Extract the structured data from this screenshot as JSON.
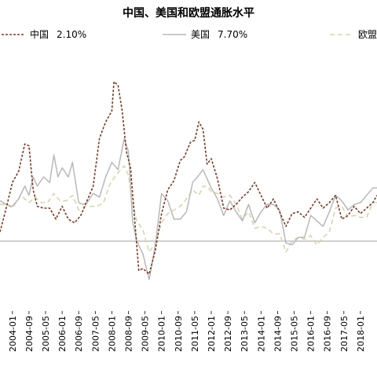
{
  "chart_data": {
    "type": "line",
    "title": "中国、美国和欧盟通胀水平",
    "xlabel": "",
    "ylabel": "",
    "x_tick_labels": [
      "2004-01",
      "2004-09",
      "2005-05",
      "2006-01",
      "2006-09",
      "2007-05",
      "2008-01",
      "2008-09",
      "2009-05",
      "2010-01",
      "2010-09",
      "2011-05",
      "2012-01",
      "2012-09",
      "2013-05",
      "2014-01",
      "2014-09",
      "2015-05",
      "2016-01",
      "2016-09",
      "2017-05",
      "2018-01"
    ],
    "x_tick_dates": [
      "2004-01",
      "2004-09",
      "2005-05",
      "2006-01",
      "2006-09",
      "2007-05",
      "2008-01",
      "2008-09",
      "2009-05",
      "2010-01",
      "2010-09",
      "2011-05",
      "2012-01",
      "2012-09",
      "2013-05",
      "2014-01",
      "2014-09",
      "2015-05",
      "2016-01",
      "2016-09",
      "2017-05",
      "2018-01"
    ],
    "x_range": [
      "2003-07",
      "2018-09"
    ],
    "ylim": [
      -3,
      9
    ],
    "zero_line": true,
    "grid": false,
    "legend_position": "top",
    "series": [
      {
        "name": "中国 2.10%",
        "legend_label": "中国",
        "legend_value": "2.10%",
        "color": "#7b3a26",
        "style": "dashed",
        "points": [
          [
            "2003-07",
            0.5
          ],
          [
            "2003-10",
            1.8
          ],
          [
            "2004-01",
            3.2
          ],
          [
            "2004-04",
            3.8
          ],
          [
            "2004-07",
            5.3
          ],
          [
            "2004-09",
            5.2
          ],
          [
            "2004-11",
            2.8
          ],
          [
            "2005-01",
            1.9
          ],
          [
            "2005-04",
            1.8
          ],
          [
            "2005-07",
            1.8
          ],
          [
            "2005-10",
            1.2
          ],
          [
            "2006-01",
            1.9
          ],
          [
            "2006-04",
            1.2
          ],
          [
            "2006-07",
            1.0
          ],
          [
            "2006-10",
            1.4
          ],
          [
            "2007-01",
            2.2
          ],
          [
            "2007-04",
            3.0
          ],
          [
            "2007-07",
            5.6
          ],
          [
            "2007-10",
            6.5
          ],
          [
            "2008-01",
            7.1
          ],
          [
            "2008-02",
            8.7
          ],
          [
            "2008-04",
            8.5
          ],
          [
            "2008-06",
            7.1
          ],
          [
            "2008-08",
            4.9
          ],
          [
            "2008-10",
            4.0
          ],
          [
            "2008-12",
            1.2
          ],
          [
            "2009-02",
            -1.6
          ],
          [
            "2009-04",
            -1.5
          ],
          [
            "2009-07",
            -1.8
          ],
          [
            "2009-10",
            -0.5
          ],
          [
            "2010-01",
            1.5
          ],
          [
            "2010-04",
            2.8
          ],
          [
            "2010-07",
            3.3
          ],
          [
            "2010-10",
            4.4
          ],
          [
            "2010-12",
            4.6
          ],
          [
            "2011-03",
            5.4
          ],
          [
            "2011-05",
            5.5
          ],
          [
            "2011-07",
            6.5
          ],
          [
            "2011-09",
            6.1
          ],
          [
            "2011-11",
            4.2
          ],
          [
            "2012-01",
            4.5
          ],
          [
            "2012-04",
            3.4
          ],
          [
            "2012-07",
            1.8
          ],
          [
            "2012-10",
            1.7
          ],
          [
            "2013-01",
            2.0
          ],
          [
            "2013-04",
            2.4
          ],
          [
            "2013-07",
            2.7
          ],
          [
            "2013-10",
            3.2
          ],
          [
            "2014-01",
            2.5
          ],
          [
            "2014-04",
            1.8
          ],
          [
            "2014-07",
            2.3
          ],
          [
            "2014-10",
            1.6
          ],
          [
            "2015-01",
            0.8
          ],
          [
            "2015-04",
            1.5
          ],
          [
            "2015-07",
            1.6
          ],
          [
            "2015-10",
            1.3
          ],
          [
            "2016-01",
            1.8
          ],
          [
            "2016-04",
            2.3
          ],
          [
            "2016-07",
            1.8
          ],
          [
            "2016-10",
            2.1
          ],
          [
            "2017-01",
            2.5
          ],
          [
            "2017-04",
            1.2
          ],
          [
            "2017-07",
            1.4
          ],
          [
            "2017-10",
            1.9
          ],
          [
            "2018-01",
            1.5
          ],
          [
            "2018-04",
            1.8
          ],
          [
            "2018-07",
            2.1
          ],
          [
            "2018-09",
            2.5
          ]
        ]
      },
      {
        "name": "美国 7.70%",
        "legend_label": "美国",
        "legend_value": "7.70%",
        "color": "#b8b8b8",
        "style": "solid",
        "points": [
          [
            "2003-07",
            2.2
          ],
          [
            "2003-10",
            2.0
          ],
          [
            "2004-01",
            1.9
          ],
          [
            "2004-04",
            2.3
          ],
          [
            "2004-07",
            3.0
          ],
          [
            "2004-09",
            2.5
          ],
          [
            "2004-11",
            3.5
          ],
          [
            "2005-01",
            3.0
          ],
          [
            "2005-04",
            3.5
          ],
          [
            "2005-07",
            3.2
          ],
          [
            "2005-09",
            4.7
          ],
          [
            "2005-11",
            3.5
          ],
          [
            "2006-01",
            4.0
          ],
          [
            "2006-04",
            3.5
          ],
          [
            "2006-06",
            4.3
          ],
          [
            "2006-09",
            2.1
          ],
          [
            "2006-11",
            2.0
          ],
          [
            "2007-01",
            2.1
          ],
          [
            "2007-04",
            2.6
          ],
          [
            "2007-07",
            2.4
          ],
          [
            "2007-10",
            3.5
          ],
          [
            "2008-01",
            4.3
          ],
          [
            "2008-04",
            3.9
          ],
          [
            "2008-07",
            5.6
          ],
          [
            "2008-09",
            4.9
          ],
          [
            "2008-11",
            1.1
          ],
          [
            "2009-01",
            0.0
          ],
          [
            "2009-04",
            -0.7
          ],
          [
            "2009-07",
            -2.1
          ],
          [
            "2009-10",
            -0.2
          ],
          [
            "2010-01",
            2.6
          ],
          [
            "2010-04",
            2.2
          ],
          [
            "2010-07",
            1.2
          ],
          [
            "2010-10",
            1.2
          ],
          [
            "2011-01",
            1.6
          ],
          [
            "2011-04",
            3.2
          ],
          [
            "2011-07",
            3.6
          ],
          [
            "2011-09",
            3.9
          ],
          [
            "2011-11",
            3.4
          ],
          [
            "2012-01",
            2.9
          ],
          [
            "2012-04",
            2.3
          ],
          [
            "2012-07",
            1.4
          ],
          [
            "2012-10",
            2.2
          ],
          [
            "2013-01",
            1.6
          ],
          [
            "2013-04",
            1.1
          ],
          [
            "2013-07",
            2.0
          ],
          [
            "2013-10",
            1.0
          ],
          [
            "2014-01",
            1.6
          ],
          [
            "2014-04",
            2.0
          ],
          [
            "2014-07",
            2.0
          ],
          [
            "2014-10",
            1.7
          ],
          [
            "2015-01",
            -0.1
          ],
          [
            "2015-04",
            -0.2
          ],
          [
            "2015-07",
            0.2
          ],
          [
            "2015-10",
            0.2
          ],
          [
            "2016-01",
            1.4
          ],
          [
            "2016-04",
            1.1
          ],
          [
            "2016-07",
            0.8
          ],
          [
            "2016-10",
            1.6
          ],
          [
            "2017-01",
            2.5
          ],
          [
            "2017-04",
            2.2
          ],
          [
            "2017-07",
            1.7
          ],
          [
            "2017-10",
            2.0
          ],
          [
            "2018-01",
            2.1
          ],
          [
            "2018-04",
            2.5
          ],
          [
            "2018-07",
            2.9
          ],
          [
            "2018-09",
            2.9
          ]
        ]
      },
      {
        "name": "欧盟",
        "legend_label": "欧盟",
        "legend_value": "",
        "color": "#d8d4ae",
        "style": "dashed",
        "points": [
          [
            "2003-07",
            2.0
          ],
          [
            "2003-10",
            2.0
          ],
          [
            "2004-01",
            1.8
          ],
          [
            "2004-05",
            2.5
          ],
          [
            "2004-09",
            2.1
          ],
          [
            "2004-12",
            2.4
          ],
          [
            "2005-03",
            2.1
          ],
          [
            "2005-06",
            2.1
          ],
          [
            "2005-09",
            2.6
          ],
          [
            "2005-12",
            2.2
          ],
          [
            "2006-03",
            2.2
          ],
          [
            "2006-06",
            2.5
          ],
          [
            "2006-09",
            1.7
          ],
          [
            "2006-12",
            1.9
          ],
          [
            "2007-03",
            1.9
          ],
          [
            "2007-06",
            1.9
          ],
          [
            "2007-09",
            2.1
          ],
          [
            "2007-12",
            3.1
          ],
          [
            "2008-03",
            3.6
          ],
          [
            "2008-06",
            4.0
          ],
          [
            "2008-07",
            4.1
          ],
          [
            "2008-09",
            3.6
          ],
          [
            "2008-11",
            2.1
          ],
          [
            "2009-01",
            1.1
          ],
          [
            "2009-04",
            0.6
          ],
          [
            "2009-07",
            -0.6
          ],
          [
            "2009-10",
            -0.1
          ],
          [
            "2010-01",
            1.0
          ],
          [
            "2010-04",
            1.5
          ],
          [
            "2010-07",
            1.7
          ],
          [
            "2010-10",
            1.9
          ],
          [
            "2011-01",
            2.3
          ],
          [
            "2011-04",
            2.8
          ],
          [
            "2011-07",
            2.5
          ],
          [
            "2011-09",
            3.0
          ],
          [
            "2011-11",
            3.0
          ],
          [
            "2012-01",
            2.7
          ],
          [
            "2012-04",
            2.6
          ],
          [
            "2012-07",
            2.4
          ],
          [
            "2012-10",
            2.5
          ],
          [
            "2013-01",
            2.0
          ],
          [
            "2013-04",
            1.2
          ],
          [
            "2013-07",
            1.6
          ],
          [
            "2013-10",
            0.7
          ],
          [
            "2014-01",
            0.8
          ],
          [
            "2014-04",
            0.7
          ],
          [
            "2014-07",
            0.4
          ],
          [
            "2014-10",
            0.4
          ],
          [
            "2015-01",
            -0.6
          ],
          [
            "2015-04",
            0.0
          ],
          [
            "2015-07",
            0.2
          ],
          [
            "2015-10",
            0.1
          ],
          [
            "2016-01",
            0.3
          ],
          [
            "2016-04",
            -0.2
          ],
          [
            "2016-07",
            0.2
          ],
          [
            "2016-10",
            0.5
          ],
          [
            "2017-01",
            1.8
          ],
          [
            "2017-04",
            1.9
          ],
          [
            "2017-07",
            1.3
          ],
          [
            "2017-10",
            1.4
          ],
          [
            "2018-01",
            1.3
          ],
          [
            "2018-04",
            1.3
          ],
          [
            "2018-07",
            2.1
          ],
          [
            "2018-09",
            2.1
          ]
        ]
      }
    ]
  }
}
